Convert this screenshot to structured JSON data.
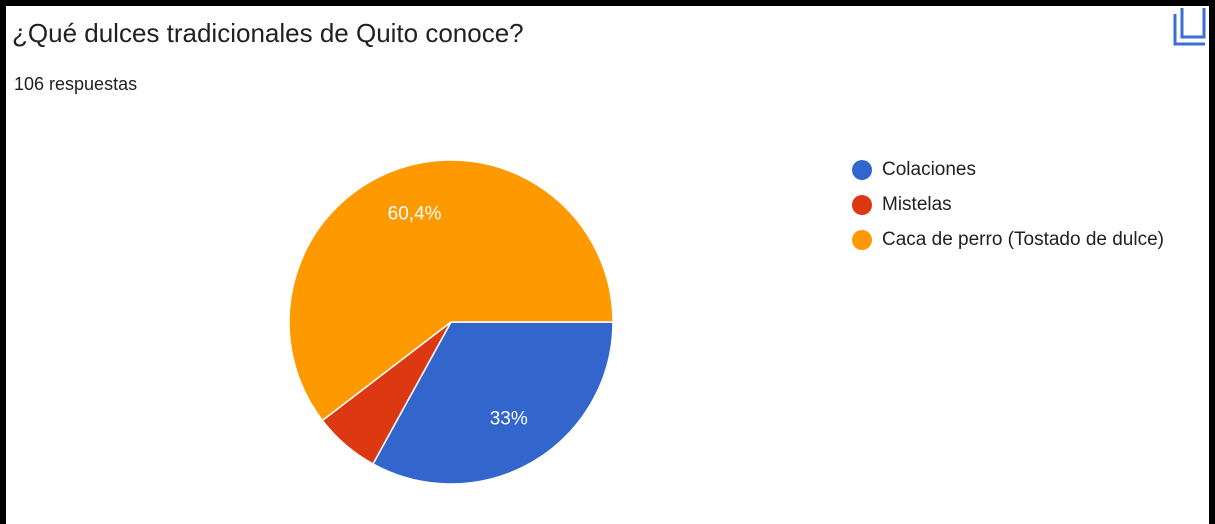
{
  "chart_data": {
    "type": "pie",
    "title": "¿Qué dulces tradicionales de Quito conoce?",
    "subtitle": "106 respuestas",
    "categories": [
      "Colaciones",
      "Mistelas",
      "Caca de perro (Tostado de dulce)"
    ],
    "values": [
      33,
      6.6,
      60.4
    ],
    "value_labels": [
      "33%",
      null,
      "60,4%"
    ],
    "colors": [
      "#3366cc",
      "#dc3912",
      "#ff9900"
    ],
    "legend": "right"
  }
}
